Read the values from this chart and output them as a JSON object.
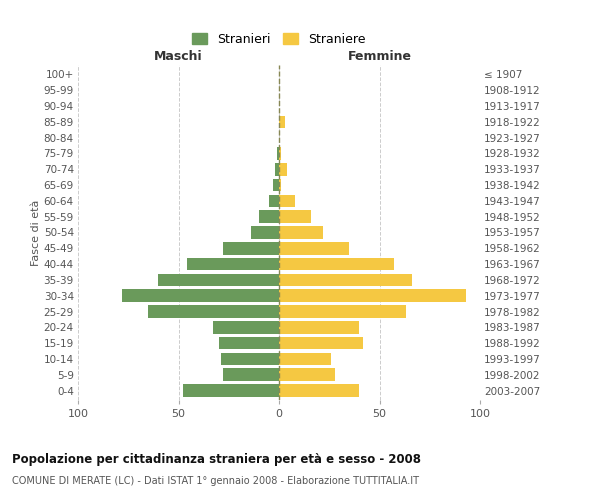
{
  "age_groups": [
    "0-4",
    "5-9",
    "10-14",
    "15-19",
    "20-24",
    "25-29",
    "30-34",
    "35-39",
    "40-44",
    "45-49",
    "50-54",
    "55-59",
    "60-64",
    "65-69",
    "70-74",
    "75-79",
    "80-84",
    "85-89",
    "90-94",
    "95-99",
    "100+"
  ],
  "birth_years": [
    "2003-2007",
    "1998-2002",
    "1993-1997",
    "1988-1992",
    "1983-1987",
    "1978-1982",
    "1973-1977",
    "1968-1972",
    "1963-1967",
    "1958-1962",
    "1953-1957",
    "1948-1952",
    "1943-1947",
    "1938-1942",
    "1933-1937",
    "1928-1932",
    "1923-1927",
    "1918-1922",
    "1913-1917",
    "1908-1912",
    "≤ 1907"
  ],
  "maschi": [
    48,
    28,
    29,
    30,
    33,
    65,
    78,
    60,
    46,
    28,
    14,
    10,
    5,
    3,
    2,
    1,
    0,
    0,
    0,
    0,
    0
  ],
  "femmine": [
    40,
    28,
    26,
    42,
    40,
    63,
    93,
    66,
    57,
    35,
    22,
    16,
    8,
    1,
    4,
    1,
    0,
    3,
    0,
    0,
    0
  ],
  "color_maschi": "#6a9a5b",
  "color_femmine": "#f5c842",
  "background_color": "#ffffff",
  "grid_color": "#cccccc",
  "title": "Popolazione per cittadinanza straniera per età e sesso - 2008",
  "subtitle": "COMUNE DI MERATE (LC) - Dati ISTAT 1° gennaio 2008 - Elaborazione TUTTITALIA.IT",
  "xlabel_left": "Maschi",
  "xlabel_right": "Femmine",
  "ylabel_left": "Fasce di età",
  "legend_maschi": "Stranieri",
  "legend_femmine": "Straniere",
  "xlim": 100,
  "bar_height": 0.8,
  "center_line_color": "#888855",
  "center_line_style": "--"
}
